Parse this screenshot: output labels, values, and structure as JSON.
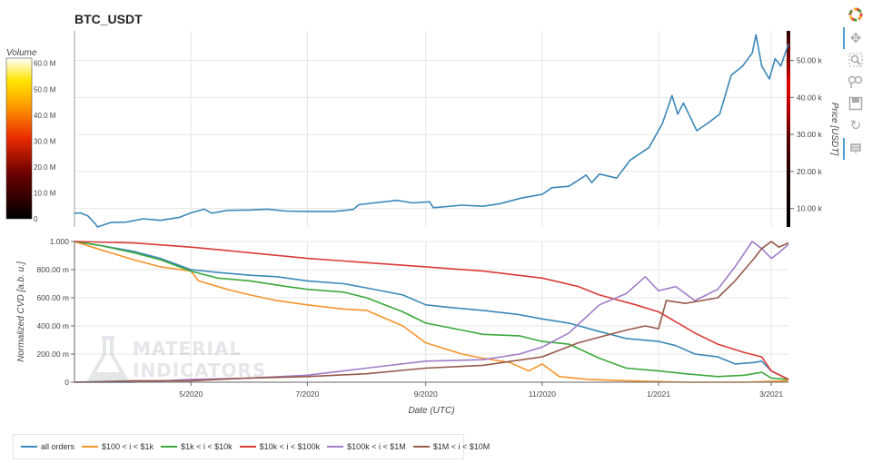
{
  "title": "BTC_USDT",
  "toolbar": {
    "icons": [
      "bokeh-logo-icon",
      "pan-icon",
      "box-zoom-icon",
      "wheel-zoom-icon",
      "save-icon",
      "reset-icon",
      "hover-icon"
    ]
  },
  "watermark": {
    "line1": "MATERIAL",
    "line2": "INDICATORS"
  },
  "colors": {
    "all_orders": "#3a88b8",
    "s100_1k": "#f5942a",
    "s1k_10k": "#3aa83a",
    "s10k_100k": "#d93b37",
    "s100k_1m": "#a07cc9",
    "s1m_10m": "#96594a",
    "price": "#3a88b8"
  },
  "legend": [
    {
      "key": "all_orders",
      "label": "all orders"
    },
    {
      "key": "s100_1k",
      "label": "$100 < i < $1k"
    },
    {
      "key": "s1k_10k",
      "label": "$1k < i < $10k"
    },
    {
      "key": "s10k_100k",
      "label": "$10k < i < $100k"
    },
    {
      "key": "s100k_1m",
      "label": "$100k < i < $1M"
    },
    {
      "key": "s1m_10m",
      "label": "$1M < i < $10M"
    }
  ],
  "chart_data": [
    {
      "type": "heatmap",
      "title": "Volume",
      "colorbar_ticks": [
        "60.0 M",
        "50.0 M",
        "40.0 M",
        "30.0 M",
        "20.0 M",
        "10.0 M",
        "0"
      ],
      "colorbar_values": [
        60,
        50,
        40,
        30,
        20,
        10,
        0
      ],
      "range": [
        0,
        62
      ]
    },
    {
      "type": "line",
      "title": "BTC_USDT",
      "ylabel": "Price [USDT]",
      "y_axis_side": "right",
      "yticks": [
        "10.00 k",
        "20.00 k",
        "30.00 k",
        "40.00 k",
        "50.00 k"
      ],
      "ytick_values": [
        10000,
        20000,
        30000,
        40000,
        50000
      ],
      "ylim": [
        5000,
        58000
      ],
      "xlim": [
        "2020-03-01",
        "2021-03-10"
      ],
      "series": [
        {
          "key": "price",
          "points": [
            [
              "2020-03-01",
              8700
            ],
            [
              "2020-03-04",
              8800
            ],
            [
              "2020-03-08",
              8000
            ],
            [
              "2020-03-12",
              5800
            ],
            [
              "2020-03-13",
              5000
            ],
            [
              "2020-03-20",
              6200
            ],
            [
              "2020-03-28",
              6300
            ],
            [
              "2020-04-06",
              7200
            ],
            [
              "2020-04-15",
              6800
            ],
            [
              "2020-04-25",
              7600
            ],
            [
              "2020-05-01",
              8800
            ],
            [
              "2020-05-08",
              9800
            ],
            [
              "2020-05-12",
              8700
            ],
            [
              "2020-05-20",
              9500
            ],
            [
              "2020-06-01",
              9600
            ],
            [
              "2020-06-10",
              9800
            ],
            [
              "2020-06-20",
              9300
            ],
            [
              "2020-07-01",
              9200
            ],
            [
              "2020-07-15",
              9200
            ],
            [
              "2020-07-25",
              9700
            ],
            [
              "2020-07-28",
              11000
            ],
            [
              "2020-08-05",
              11500
            ],
            [
              "2020-08-17",
              12200
            ],
            [
              "2020-08-25",
              11500
            ],
            [
              "2020-09-03",
              11800
            ],
            [
              "2020-09-05",
              10200
            ],
            [
              "2020-09-20",
              10900
            ],
            [
              "2020-10-01",
              10600
            ],
            [
              "2020-10-10",
              11300
            ],
            [
              "2020-10-21",
              12800
            ],
            [
              "2020-11-01",
              13800
            ],
            [
              "2020-11-06",
              15600
            ],
            [
              "2020-11-15",
              16000
            ],
            [
              "2020-11-24",
              19000
            ],
            [
              "2020-11-27",
              17000
            ],
            [
              "2020-12-01",
              19300
            ],
            [
              "2020-12-10",
              18200
            ],
            [
              "2020-12-17",
              23000
            ],
            [
              "2020-12-27",
              26500
            ],
            [
              "2021-01-03",
              33000
            ],
            [
              "2021-01-08",
              40500
            ],
            [
              "2021-01-11",
              35500
            ],
            [
              "2021-01-14",
              38500
            ],
            [
              "2021-01-21",
              31000
            ],
            [
              "2021-01-28",
              33500
            ],
            [
              "2021-02-02",
              35500
            ],
            [
              "2021-02-08",
              46000
            ],
            [
              "2021-02-14",
              48500
            ],
            [
              "2021-02-19",
              52000
            ],
            [
              "2021-02-21",
              57000
            ],
            [
              "2021-02-24",
              48500
            ],
            [
              "2021-02-28",
              45000
            ],
            [
              "2021-03-03",
              50500
            ],
            [
              "2021-03-06",
              48500
            ],
            [
              "2021-03-10",
              54500
            ]
          ]
        }
      ]
    },
    {
      "type": "line",
      "xlabel": "Date (UTC)",
      "ylabel": "Normalized CVD [a.b. u.]",
      "xticks": [
        "5/2020",
        "7/2020",
        "9/2020",
        "11/2020",
        "1/2021",
        "3/2021"
      ],
      "xtick_dates": [
        "2020-05-01",
        "2020-07-01",
        "2020-09-01",
        "2020-11-01",
        "2021-01-01",
        "2021-03-01"
      ],
      "yticks": [
        "0",
        "200.00 m",
        "400.00 m",
        "600.00 m",
        "800.00 m",
        "1.000"
      ],
      "ytick_values": [
        0,
        0.2,
        0.4,
        0.6,
        0.8,
        1.0
      ],
      "ylim": [
        0,
        1.0
      ],
      "xlim": [
        "2020-03-01",
        "2021-03-10"
      ],
      "series": [
        {
          "key": "all_orders",
          "name": "all orders",
          "points": [
            [
              "2020-03-01",
              1.0
            ],
            [
              "2020-03-15",
              0.97
            ],
            [
              "2020-04-01",
              0.93
            ],
            [
              "2020-04-15",
              0.88
            ],
            [
              "2020-05-01",
              0.8
            ],
            [
              "2020-05-15",
              0.78
            ],
            [
              "2020-06-01",
              0.76
            ],
            [
              "2020-06-15",
              0.75
            ],
            [
              "2020-07-01",
              0.72
            ],
            [
              "2020-07-20",
              0.7
            ],
            [
              "2020-08-01",
              0.67
            ],
            [
              "2020-08-20",
              0.62
            ],
            [
              "2020-09-01",
              0.55
            ],
            [
              "2020-09-15",
              0.53
            ],
            [
              "2020-10-01",
              0.51
            ],
            [
              "2020-10-20",
              0.48
            ],
            [
              "2020-11-01",
              0.45
            ],
            [
              "2020-11-15",
              0.42
            ],
            [
              "2020-12-01",
              0.36
            ],
            [
              "2020-12-15",
              0.31
            ],
            [
              "2021-01-01",
              0.29
            ],
            [
              "2021-01-10",
              0.26
            ],
            [
              "2021-01-20",
              0.2
            ],
            [
              "2021-02-01",
              0.18
            ],
            [
              "2021-02-10",
              0.13
            ],
            [
              "2021-02-20",
              0.14
            ],
            [
              "2021-02-24",
              0.15
            ],
            [
              "2021-03-01",
              0.08
            ],
            [
              "2021-03-10",
              0.02
            ]
          ]
        },
        {
          "key": "s100_1k",
          "name": "$100 < i < $1k",
          "points": [
            [
              "2020-03-01",
              1.0
            ],
            [
              "2020-03-15",
              0.94
            ],
            [
              "2020-04-01",
              0.87
            ],
            [
              "2020-04-15",
              0.82
            ],
            [
              "2020-05-01",
              0.79
            ],
            [
              "2020-05-05",
              0.72
            ],
            [
              "2020-05-20",
              0.66
            ],
            [
              "2020-06-01",
              0.62
            ],
            [
              "2020-06-15",
              0.58
            ],
            [
              "2020-07-01",
              0.55
            ],
            [
              "2020-07-20",
              0.52
            ],
            [
              "2020-08-01",
              0.51
            ],
            [
              "2020-08-20",
              0.4
            ],
            [
              "2020-09-01",
              0.28
            ],
            [
              "2020-09-20",
              0.2
            ],
            [
              "2020-10-01",
              0.17
            ],
            [
              "2020-10-15",
              0.14
            ],
            [
              "2020-10-25",
              0.08
            ],
            [
              "2020-11-01",
              0.13
            ],
            [
              "2020-11-10",
              0.04
            ],
            [
              "2020-11-25",
              0.02
            ],
            [
              "2020-12-15",
              0.01
            ],
            [
              "2021-01-15",
              0.0
            ],
            [
              "2021-02-15",
              0.0
            ],
            [
              "2021-03-10",
              0.01
            ]
          ]
        },
        {
          "key": "s1k_10k",
          "name": "$1k < i < $10k",
          "points": [
            [
              "2020-03-01",
              1.0
            ],
            [
              "2020-03-15",
              0.97
            ],
            [
              "2020-04-01",
              0.92
            ],
            [
              "2020-04-15",
              0.87
            ],
            [
              "2020-05-01",
              0.79
            ],
            [
              "2020-05-15",
              0.74
            ],
            [
              "2020-06-01",
              0.72
            ],
            [
              "2020-06-20",
              0.68
            ],
            [
              "2020-07-01",
              0.66
            ],
            [
              "2020-07-20",
              0.64
            ],
            [
              "2020-08-01",
              0.6
            ],
            [
              "2020-08-20",
              0.5
            ],
            [
              "2020-09-01",
              0.42
            ],
            [
              "2020-09-20",
              0.37
            ],
            [
              "2020-10-01",
              0.34
            ],
            [
              "2020-10-20",
              0.33
            ],
            [
              "2020-11-01",
              0.29
            ],
            [
              "2020-11-15",
              0.27
            ],
            [
              "2020-12-01",
              0.17
            ],
            [
              "2020-12-15",
              0.1
            ],
            [
              "2021-01-01",
              0.08
            ],
            [
              "2021-01-15",
              0.06
            ],
            [
              "2021-02-01",
              0.04
            ],
            [
              "2021-02-15",
              0.05
            ],
            [
              "2021-02-24",
              0.07
            ],
            [
              "2021-03-01",
              0.03
            ],
            [
              "2021-03-10",
              0.02
            ]
          ]
        },
        {
          "key": "s10k_100k",
          "name": "$10k < i < $100k",
          "points": [
            [
              "2020-03-01",
              1.0
            ],
            [
              "2020-04-01",
              0.99
            ],
            [
              "2020-05-01",
              0.96
            ],
            [
              "2020-06-01",
              0.92
            ],
            [
              "2020-07-01",
              0.88
            ],
            [
              "2020-08-01",
              0.85
            ],
            [
              "2020-09-01",
              0.82
            ],
            [
              "2020-10-01",
              0.79
            ],
            [
              "2020-11-01",
              0.74
            ],
            [
              "2020-11-20",
              0.68
            ],
            [
              "2020-12-01",
              0.62
            ],
            [
              "2020-12-20",
              0.55
            ],
            [
              "2021-01-01",
              0.5
            ],
            [
              "2021-01-10",
              0.43
            ],
            [
              "2021-01-20",
              0.35
            ],
            [
              "2021-02-01",
              0.27
            ],
            [
              "2021-02-15",
              0.21
            ],
            [
              "2021-02-24",
              0.18
            ],
            [
              "2021-03-01",
              0.08
            ],
            [
              "2021-03-10",
              0.02
            ]
          ]
        },
        {
          "key": "s100k_1m",
          "name": "$100k < i < $1M",
          "points": [
            [
              "2020-03-01",
              0.0
            ],
            [
              "2020-04-01",
              0.0
            ],
            [
              "2020-05-01",
              0.02
            ],
            [
              "2020-06-01",
              0.03
            ],
            [
              "2020-07-01",
              0.05
            ],
            [
              "2020-08-01",
              0.1
            ],
            [
              "2020-09-01",
              0.15
            ],
            [
              "2020-10-01",
              0.16
            ],
            [
              "2020-10-20",
              0.2
            ],
            [
              "2020-11-01",
              0.25
            ],
            [
              "2020-11-15",
              0.35
            ],
            [
              "2020-12-01",
              0.55
            ],
            [
              "2020-12-15",
              0.63
            ],
            [
              "2020-12-25",
              0.75
            ],
            [
              "2021-01-01",
              0.65
            ],
            [
              "2021-01-10",
              0.68
            ],
            [
              "2021-01-20",
              0.58
            ],
            [
              "2021-02-01",
              0.66
            ],
            [
              "2021-02-10",
              0.82
            ],
            [
              "2021-02-19",
              1.0
            ],
            [
              "2021-02-24",
              0.95
            ],
            [
              "2021-03-01",
              0.88
            ],
            [
              "2021-03-05",
              0.92
            ],
            [
              "2021-03-10",
              0.98
            ]
          ]
        },
        {
          "key": "s1m_10m",
          "name": "$1M < i < $10M",
          "points": [
            [
              "2020-03-01",
              0.0
            ],
            [
              "2020-04-01",
              0.01
            ],
            [
              "2020-05-01",
              0.01
            ],
            [
              "2020-06-01",
              0.03
            ],
            [
              "2020-07-01",
              0.04
            ],
            [
              "2020-08-01",
              0.06
            ],
            [
              "2020-09-01",
              0.1
            ],
            [
              "2020-10-01",
              0.12
            ],
            [
              "2020-11-01",
              0.18
            ],
            [
              "2020-11-20",
              0.28
            ],
            [
              "2020-12-01",
              0.32
            ],
            [
              "2020-12-15",
              0.37
            ],
            [
              "2020-12-25",
              0.4
            ],
            [
              "2021-01-01",
              0.38
            ],
            [
              "2021-01-05",
              0.58
            ],
            [
              "2021-01-15",
              0.56
            ],
            [
              "2021-02-01",
              0.6
            ],
            [
              "2021-02-10",
              0.72
            ],
            [
              "2021-02-20",
              0.88
            ],
            [
              "2021-02-24",
              0.95
            ],
            [
              "2021-03-01",
              1.0
            ],
            [
              "2021-03-05",
              0.96
            ],
            [
              "2021-03-10",
              0.99
            ]
          ]
        }
      ]
    }
  ]
}
